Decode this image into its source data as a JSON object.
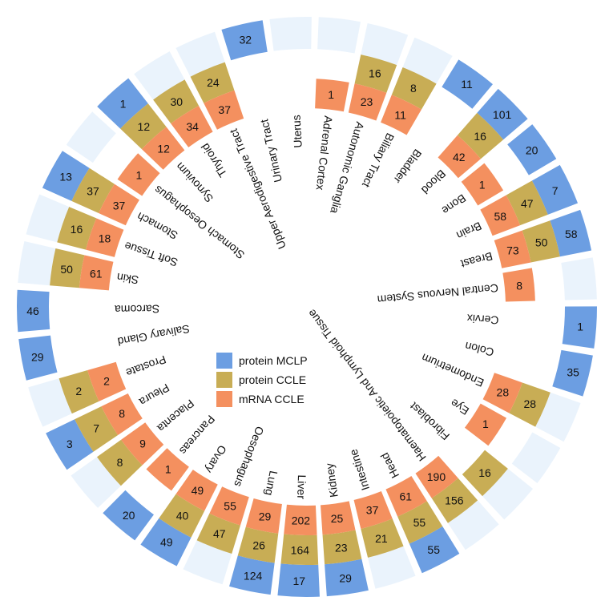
{
  "chart_data": {
    "type": "radial-heatmap",
    "categories": [
      "Adrenal Cortex",
      "Autonomic Ganglia",
      "Biliary Tract",
      "Bladder",
      "Blood",
      "Bone",
      "Brain",
      "Breast",
      "Central Nervous System",
      "Cervix",
      "Colon",
      "Endometrium",
      "Eye",
      "Fibroblast",
      "Haematopoietic And Lymphoid Tissue",
      "Head",
      "Intestine",
      "Kidney",
      "Liver",
      "Lung",
      "Oesophagus",
      "Ovary",
      "Pancreas",
      "Placenta",
      "Pleura",
      "Prostate",
      "Salivary Gland",
      "Sarcoma",
      "Skin",
      "Soft Tissue",
      "Stomach",
      "Stomach Oesophagus",
      "Synovium",
      "Thyroid",
      "Upper Aerodigestive Tract",
      "Urinary Tract",
      "Uterus"
    ],
    "series": [
      {
        "name": "mRNA CCLE",
        "color": "#F4905F",
        "values": [
          1,
          23,
          11,
          null,
          42,
          1,
          58,
          73,
          8,
          null,
          null,
          28,
          1,
          null,
          190,
          61,
          37,
          25,
          202,
          29,
          55,
          49,
          1,
          9,
          8,
          2,
          null,
          null,
          61,
          18,
          37,
          1,
          12,
          34,
          37,
          null,
          null
        ]
      },
      {
        "name": "protein CCLE",
        "color": "#C8AD55",
        "values": [
          null,
          16,
          8,
          null,
          16,
          null,
          47,
          50,
          null,
          null,
          null,
          28,
          null,
          16,
          156,
          55,
          21,
          23,
          164,
          26,
          47,
          40,
          null,
          8,
          7,
          2,
          null,
          null,
          50,
          16,
          37,
          null,
          12,
          30,
          24,
          null,
          null
        ]
      },
      {
        "name": "protein MCLP",
        "color": "#6C9EE2",
        "values": [
          null,
          null,
          null,
          11,
          101,
          20,
          7,
          58,
          null,
          1,
          35,
          null,
          null,
          null,
          null,
          55,
          null,
          29,
          17,
          124,
          null,
          49,
          20,
          null,
          3,
          null,
          29,
          46,
          null,
          null,
          13,
          null,
          1,
          null,
          null,
          32,
          null
        ]
      }
    ],
    "legend": {
      "position": "center",
      "entries": [
        "protein MCLP",
        "protein CCLE",
        "mRNA CCLE"
      ]
    },
    "empty_cell_color": "#EAF3FC"
  }
}
